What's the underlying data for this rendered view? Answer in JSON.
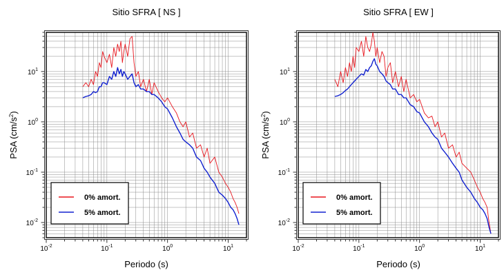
{
  "chart_data": [
    {
      "type": "line",
      "title": "Sitio SFRA [ NS ]",
      "xlabel": "Periodo (s)",
      "ylabel_main": "PSA (cm/s",
      "ylabel_sup": "2",
      "ylabel_close": ")",
      "xscale": "log",
      "yscale": "log",
      "xlim": [
        0.01,
        20
      ],
      "ylim": [
        0.005,
        60
      ],
      "grid": true,
      "legend_position": "bottom-left",
      "x_ticks": [
        {
          "value": 0.01,
          "base": "10",
          "exp": "-2"
        },
        {
          "value": 0.1,
          "base": "10",
          "exp": "-1"
        },
        {
          "value": 1,
          "base": "10",
          "exp": "0"
        },
        {
          "value": 10,
          "base": "10",
          "exp": "1"
        }
      ],
      "y_ticks": [
        {
          "value": 0.01,
          "base": "10",
          "exp": "-2"
        },
        {
          "value": 0.1,
          "base": "10",
          "exp": "-1"
        },
        {
          "value": 1,
          "base": "10",
          "exp": "0"
        },
        {
          "value": 10,
          "base": "10",
          "exp": "1"
        }
      ],
      "series": [
        {
          "name": "0% amort.",
          "color": "#e8141c",
          "x": [
            0.04,
            0.045,
            0.05,
            0.055,
            0.06,
            0.065,
            0.07,
            0.075,
            0.08,
            0.085,
            0.09,
            0.1,
            0.11,
            0.12,
            0.13,
            0.14,
            0.15,
            0.16,
            0.17,
            0.18,
            0.19,
            0.2,
            0.22,
            0.24,
            0.26,
            0.28,
            0.3,
            0.33,
            0.36,
            0.4,
            0.45,
            0.5,
            0.55,
            0.6,
            0.7,
            0.8,
            0.9,
            1.0,
            1.2,
            1.4,
            1.6,
            1.8,
            2.0,
            2.3,
            2.6,
            3.0,
            3.5,
            4.0,
            4.5,
            5.0,
            6.0,
            7.0,
            8.0,
            9.0,
            10,
            11,
            12,
            13,
            14,
            15
          ],
          "y": [
            5,
            6,
            5,
            7,
            5.5,
            10,
            8,
            15,
            12,
            25,
            20,
            15,
            22,
            12,
            30,
            20,
            35,
            25,
            40,
            15,
            25,
            35,
            20,
            45,
            50,
            15,
            8,
            10,
            5,
            7,
            4,
            7,
            3.5,
            6,
            4,
            3,
            2.5,
            3,
            2,
            1.5,
            1.0,
            0.8,
            1.0,
            0.5,
            0.6,
            0.3,
            0.35,
            0.2,
            0.3,
            0.15,
            0.2,
            0.1,
            0.08,
            0.06,
            0.05,
            0.04,
            0.03,
            0.025,
            0.02,
            0.015
          ]
        },
        {
          "name": "5% amort.",
          "color": "#1020d0",
          "x": [
            0.04,
            0.045,
            0.05,
            0.055,
            0.06,
            0.065,
            0.07,
            0.075,
            0.08,
            0.085,
            0.09,
            0.1,
            0.11,
            0.12,
            0.13,
            0.14,
            0.15,
            0.16,
            0.17,
            0.18,
            0.19,
            0.2,
            0.22,
            0.24,
            0.26,
            0.28,
            0.3,
            0.33,
            0.36,
            0.4,
            0.45,
            0.5,
            0.55,
            0.6,
            0.7,
            0.8,
            0.9,
            1.0,
            1.2,
            1.4,
            1.6,
            1.8,
            2.0,
            2.3,
            2.6,
            3.0,
            3.5,
            4.0,
            4.5,
            5.0,
            6.0,
            7.0,
            8.0,
            9.0,
            10,
            11,
            12,
            13,
            14,
            15
          ],
          "y": [
            3,
            3.2,
            3.3,
            3.5,
            4,
            3.8,
            4,
            5,
            5,
            6,
            6,
            5.5,
            8,
            7,
            10,
            8,
            12,
            9,
            11,
            8,
            10,
            9,
            7,
            8,
            9,
            6,
            5,
            5.5,
            4.5,
            4.5,
            4,
            4,
            3.5,
            3.5,
            3,
            2.5,
            2,
            1.8,
            1.2,
            0.8,
            0.6,
            0.45,
            0.4,
            0.35,
            0.3,
            0.2,
            0.17,
            0.12,
            0.1,
            0.08,
            0.06,
            0.04,
            0.035,
            0.03,
            0.025,
            0.02,
            0.018,
            0.015,
            0.012,
            0.009
          ]
        }
      ]
    },
    {
      "type": "line",
      "title": "Sitio SFRA [ EW ]",
      "xlabel": "Periodo (s)",
      "ylabel_main": "PSA (cm/s",
      "ylabel_sup": "2",
      "ylabel_close": ")",
      "xscale": "log",
      "yscale": "log",
      "xlim": [
        0.01,
        20
      ],
      "ylim": [
        0.005,
        60
      ],
      "grid": true,
      "legend_position": "bottom-left",
      "x_ticks": [
        {
          "value": 0.01,
          "base": "10",
          "exp": "-2"
        },
        {
          "value": 0.1,
          "base": "10",
          "exp": "-1"
        },
        {
          "value": 1,
          "base": "10",
          "exp": "0"
        },
        {
          "value": 10,
          "base": "10",
          "exp": "1"
        }
      ],
      "y_ticks": [
        {
          "value": 0.01,
          "base": "10",
          "exp": "-2"
        },
        {
          "value": 0.1,
          "base": "10",
          "exp": "-1"
        },
        {
          "value": 1,
          "base": "10",
          "exp": "0"
        },
        {
          "value": 10,
          "base": "10",
          "exp": "1"
        }
      ],
      "series": [
        {
          "name": "0% amort.",
          "color": "#e8141c",
          "x": [
            0.04,
            0.045,
            0.05,
            0.055,
            0.06,
            0.065,
            0.07,
            0.075,
            0.08,
            0.085,
            0.09,
            0.1,
            0.11,
            0.12,
            0.13,
            0.14,
            0.15,
            0.16,
            0.17,
            0.18,
            0.19,
            0.2,
            0.22,
            0.24,
            0.26,
            0.28,
            0.3,
            0.33,
            0.36,
            0.4,
            0.45,
            0.5,
            0.55,
            0.6,
            0.7,
            0.8,
            0.9,
            1.0,
            1.2,
            1.4,
            1.6,
            1.8,
            2.0,
            2.3,
            2.6,
            3.0,
            3.5,
            4.0,
            4.5,
            5.0,
            6.0,
            7.0,
            8.0,
            9.0,
            10,
            11,
            12,
            13,
            14,
            15
          ],
          "y": [
            7,
            5,
            10,
            6,
            12,
            8,
            15,
            10,
            20,
            12,
            30,
            25,
            40,
            20,
            50,
            30,
            25,
            35,
            60,
            40,
            20,
            30,
            15,
            25,
            20,
            8,
            12,
            15,
            6,
            10,
            5,
            8,
            4,
            7,
            3,
            3.5,
            2.5,
            2.8,
            1.5,
            1.2,
            1.3,
            0.8,
            1.0,
            0.5,
            0.6,
            0.3,
            0.35,
            0.2,
            0.25,
            0.15,
            0.12,
            0.1,
            0.07,
            0.05,
            0.04,
            0.03,
            0.025,
            0.02,
            0.01,
            0.006
          ]
        },
        {
          "name": "5% amort.",
          "color": "#1020d0",
          "x": [
            0.04,
            0.045,
            0.05,
            0.055,
            0.06,
            0.065,
            0.07,
            0.075,
            0.08,
            0.085,
            0.09,
            0.1,
            0.11,
            0.12,
            0.13,
            0.14,
            0.15,
            0.16,
            0.17,
            0.18,
            0.19,
            0.2,
            0.22,
            0.24,
            0.26,
            0.28,
            0.3,
            0.33,
            0.36,
            0.4,
            0.45,
            0.5,
            0.55,
            0.6,
            0.7,
            0.8,
            0.9,
            1.0,
            1.2,
            1.4,
            1.6,
            1.8,
            2.0,
            2.3,
            2.6,
            3.0,
            3.5,
            4.0,
            4.5,
            5.0,
            6.0,
            7.0,
            8.0,
            9.0,
            10,
            11,
            12,
            13,
            14,
            15
          ],
          "y": [
            3.2,
            3.3,
            3.5,
            3.8,
            4.2,
            4.5,
            5,
            5.5,
            6,
            6.5,
            7,
            8,
            9,
            8.5,
            11,
            10,
            12,
            13,
            16,
            18,
            14,
            13,
            10,
            9,
            8,
            6.5,
            6,
            5.5,
            4.5,
            4.5,
            3.5,
            3.5,
            3,
            3,
            2.2,
            2,
            1.6,
            1.5,
            1.0,
            0.8,
            0.6,
            0.5,
            0.45,
            0.3,
            0.25,
            0.2,
            0.15,
            0.12,
            0.1,
            0.07,
            0.05,
            0.04,
            0.03,
            0.025,
            0.02,
            0.018,
            0.015,
            0.012,
            0.008,
            0.006
          ]
        }
      ]
    }
  ]
}
